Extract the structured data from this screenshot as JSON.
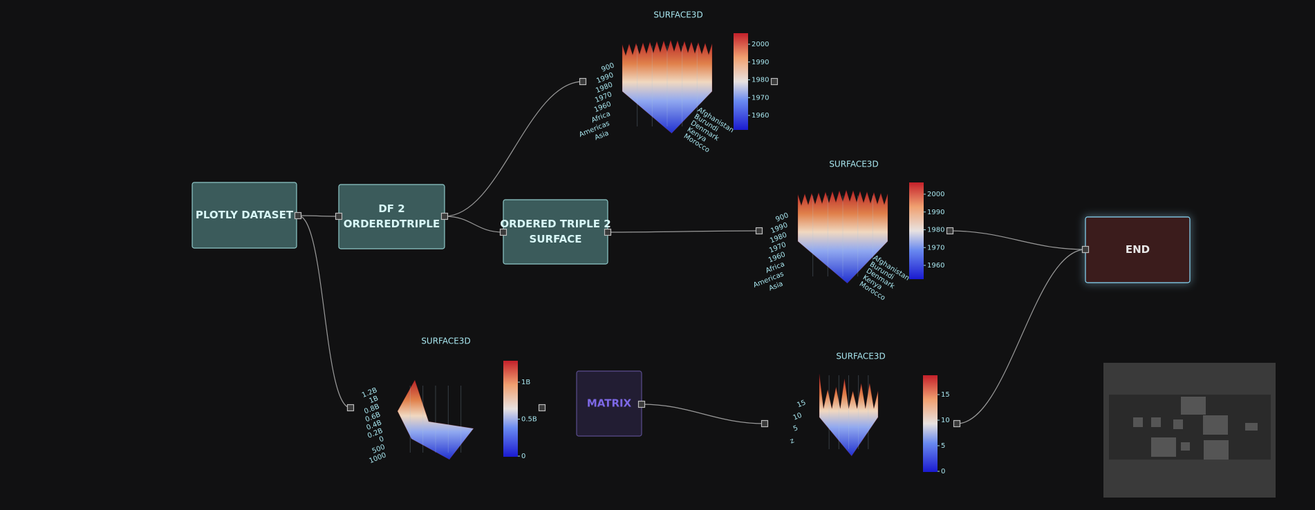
{
  "nodes": [
    {
      "lines": [
        "PLOTLY DATASET"
      ]
    },
    {
      "lines": [
        "DF 2",
        "ORDEREDTRIPLE"
      ]
    },
    {
      "lines": [
        "ORDERED TRIPLE 2",
        "SURFACE"
      ]
    },
    {
      "lines": [
        "MATRIX"
      ]
    },
    {
      "lines": [
        "END"
      ]
    }
  ],
  "plots": [
    {
      "title": "SURFACE3D",
      "colorbar": [
        "2000",
        "1990",
        "1980",
        "1970",
        "1960"
      ],
      "left_axis": [
        "900",
        "1990",
        "1980",
        "1970",
        "1960",
        "Africa",
        "Americas",
        "Asia"
      ],
      "right_axis": [
        "Afghanistan",
        "Burundi",
        "Denmark",
        "Kenya",
        "Morocco"
      ]
    },
    {
      "title": "SURFACE3D",
      "colorbar": [
        "2000",
        "1990",
        "1980",
        "1970",
        "1960"
      ],
      "left_axis": [
        "900",
        "1990",
        "1980",
        "1970",
        "1960",
        "Africa",
        "Americas",
        "Asia"
      ],
      "right_axis": [
        "Afghanistan",
        "Burundi",
        "Denmark",
        "Kenya",
        "Morocco"
      ]
    },
    {
      "title": "SURFACE3D",
      "colorbar": [
        "1B",
        "0.5B",
        "0"
      ],
      "left_axis": [
        "1.2B",
        "1B",
        "0.8B",
        "0.6B",
        "0.4B",
        "0.2B",
        "0",
        "500",
        "1000"
      ]
    },
    {
      "title": "SURFACE3D",
      "colorbar": [
        "15",
        "10",
        "5",
        "0"
      ],
      "left_axis": [
        "15",
        "10",
        "5",
        "z"
      ]
    }
  ]
}
